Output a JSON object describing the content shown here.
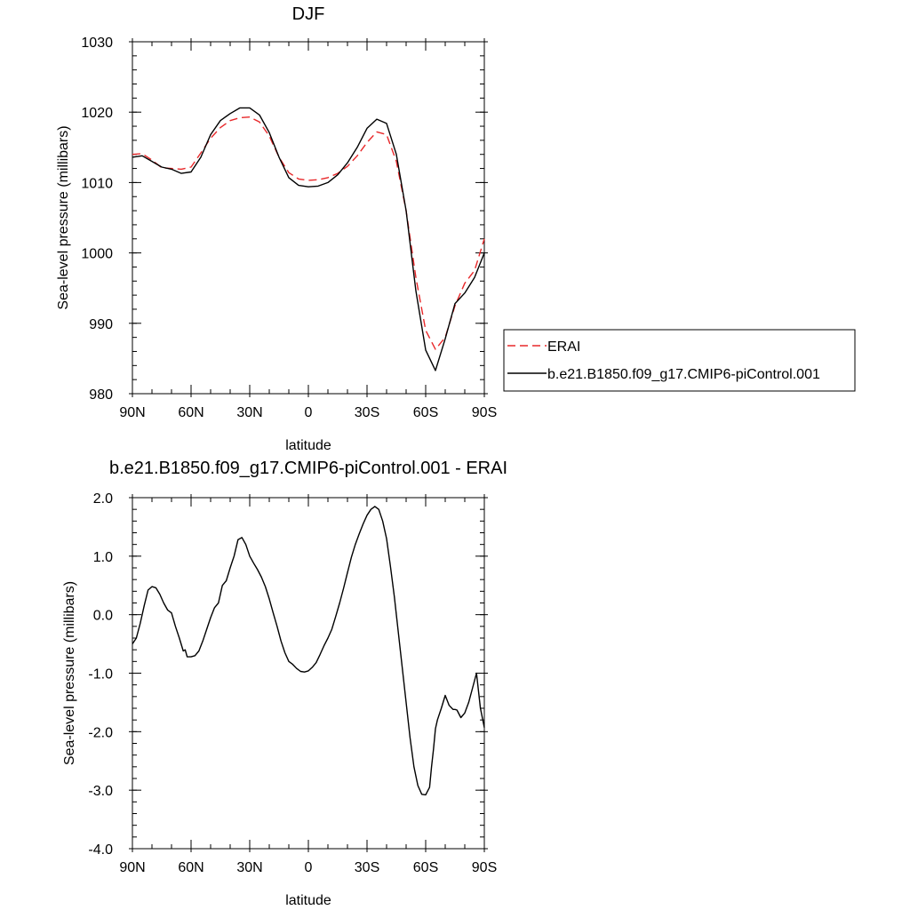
{
  "chart_data": [
    {
      "type": "line",
      "title": "DJF",
      "xlabel": "latitude",
      "ylabel": "Sea-level pressure (millibars)",
      "xlim": [
        90,
        -90
      ],
      "ylim": [
        980,
        1030
      ],
      "x_ticks": [
        {
          "value": 90,
          "label": "90N"
        },
        {
          "value": 60,
          "label": "60N"
        },
        {
          "value": 30,
          "label": "30N"
        },
        {
          "value": 0,
          "label": "0"
        },
        {
          "value": -30,
          "label": "30S"
        },
        {
          "value": -60,
          "label": "60S"
        },
        {
          "value": -90,
          "label": "90S"
        }
      ],
      "y_ticks": [
        {
          "value": 1030,
          "label": "1030"
        },
        {
          "value": 1020,
          "label": "1020"
        },
        {
          "value": 1010,
          "label": "1010"
        },
        {
          "value": 1000,
          "label": "1000"
        },
        {
          "value": 990,
          "label": "990"
        },
        {
          "value": 980,
          "label": "980"
        }
      ],
      "legend": {
        "placement": "right"
      },
      "series": [
        {
          "name": "ERAI",
          "color": "#e8282a",
          "dash": true,
          "x": [
            90,
            85,
            80,
            75,
            70,
            65,
            60,
            55,
            50,
            45,
            40,
            35,
            30,
            25,
            20,
            15,
            10,
            5,
            0,
            -5,
            -10,
            -15,
            -20,
            -25,
            -30,
            -35,
            -40,
            -45,
            -50,
            -55,
            -60,
            -65,
            -70,
            -75,
            -80,
            -85,
            -90
          ],
          "values": [
            1014.0,
            1014.1,
            1013.2,
            1012.1,
            1012.0,
            1011.9,
            1012.2,
            1014.2,
            1016.3,
            1017.8,
            1018.8,
            1019.2,
            1019.3,
            1018.6,
            1016.6,
            1013.6,
            1011.4,
            1010.5,
            1010.3,
            1010.4,
            1010.7,
            1011.3,
            1012.3,
            1013.8,
            1015.7,
            1017.2,
            1016.8,
            1013.0,
            1006.0,
            996.5,
            989.0,
            986.3,
            988.0,
            992.5,
            995.7,
            997.5,
            1002.0
          ]
        },
        {
          "name": "b.e21.B1850.f09_g17.CMIP6-piControl.001",
          "color": "#000000",
          "dash": false,
          "x": [
            90,
            85,
            80,
            75,
            70,
            65,
            60,
            55,
            50,
            45,
            40,
            35,
            30,
            25,
            20,
            15,
            10,
            5,
            0,
            -5,
            -10,
            -15,
            -20,
            -25,
            -30,
            -35,
            -40,
            -45,
            -50,
            -55,
            -60,
            -65,
            -70,
            -75,
            -80,
            -85,
            -90
          ],
          "values": [
            1013.6,
            1013.8,
            1013.0,
            1012.2,
            1011.9,
            1011.3,
            1011.5,
            1013.6,
            1016.8,
            1018.8,
            1019.8,
            1020.6,
            1020.6,
            1019.6,
            1017.1,
            1013.6,
            1010.7,
            1009.6,
            1009.4,
            1009.5,
            1010.0,
            1011.1,
            1012.8,
            1015.0,
            1017.7,
            1019.0,
            1018.4,
            1014.0,
            1006.0,
            994.6,
            986.2,
            983.3,
            987.8,
            992.8,
            994.3,
            996.5,
            1000.0
          ]
        }
      ]
    },
    {
      "type": "line",
      "title": "b.e21.B1850.f09_g17.CMIP6-piControl.001 - ERAI",
      "xlabel": "latitude",
      "ylabel": "Sea-level pressure (millibars)",
      "xlim": [
        90,
        -90
      ],
      "ylim": [
        -4.0,
        2.0
      ],
      "x_ticks": [
        {
          "value": 90,
          "label": "90N"
        },
        {
          "value": 60,
          "label": "60N"
        },
        {
          "value": 30,
          "label": "30N"
        },
        {
          "value": 0,
          "label": "0"
        },
        {
          "value": -30,
          "label": "30S"
        },
        {
          "value": -60,
          "label": "60S"
        },
        {
          "value": -90,
          "label": "90S"
        }
      ],
      "y_ticks": [
        {
          "value": 2.0,
          "label": "2.0"
        },
        {
          "value": 1.0,
          "label": "1.0"
        },
        {
          "value": 0.0,
          "label": "0.0"
        },
        {
          "value": -1.0,
          "label": "-1.0"
        },
        {
          "value": -2.0,
          "label": "-2.0"
        },
        {
          "value": -3.0,
          "label": "-3.0"
        },
        {
          "value": -4.0,
          "label": "-4.0"
        }
      ],
      "series": [
        {
          "color": "#000000",
          "dash": false,
          "x": [
            90,
            88,
            86,
            84,
            82,
            80,
            78,
            76,
            74,
            72,
            70,
            68,
            66,
            64,
            63,
            62,
            60,
            58,
            56,
            54,
            52,
            50,
            48,
            46,
            44,
            42,
            40,
            39,
            38,
            36,
            34,
            32,
            30,
            28,
            26,
            24,
            22,
            20,
            18,
            16,
            14,
            12,
            10,
            8,
            6,
            4,
            2,
            0,
            -2,
            -4,
            -6,
            -8,
            -10,
            -12,
            -14,
            -16,
            -18,
            -20,
            -22,
            -24,
            -26,
            -28,
            -30,
            -32,
            -34,
            -36,
            -38,
            -40,
            -42,
            -44,
            -46,
            -48,
            -50,
            -52,
            -54,
            -56,
            -58,
            -60,
            -62,
            -63,
            -64,
            -65,
            -66,
            -68,
            -70,
            -72,
            -74,
            -75,
            -76,
            -78,
            -80,
            -82,
            -84,
            -86,
            -88,
            -90
          ],
          "values": [
            -0.5,
            -0.4,
            -0.15,
            0.15,
            0.42,
            0.48,
            0.46,
            0.35,
            0.2,
            0.08,
            0.03,
            -0.2,
            -0.4,
            -0.62,
            -0.6,
            -0.72,
            -0.72,
            -0.7,
            -0.62,
            -0.45,
            -0.25,
            -0.05,
            0.12,
            0.2,
            0.5,
            0.58,
            0.8,
            0.9,
            1.0,
            1.28,
            1.32,
            1.2,
            1.0,
            0.88,
            0.77,
            0.64,
            0.48,
            0.27,
            0.03,
            -0.2,
            -0.45,
            -0.65,
            -0.8,
            -0.85,
            -0.92,
            -0.97,
            -0.98,
            -0.96,
            -0.9,
            -0.82,
            -0.68,
            -0.53,
            -0.4,
            -0.25,
            -0.03,
            0.2,
            0.45,
            0.72,
            0.98,
            1.2,
            1.38,
            1.55,
            1.7,
            1.8,
            1.85,
            1.8,
            1.6,
            1.3,
            0.82,
            0.3,
            -0.3,
            -0.9,
            -1.5,
            -2.1,
            -2.6,
            -2.92,
            -3.07,
            -3.08,
            -2.95,
            -2.6,
            -2.3,
            -1.95,
            -1.8,
            -1.6,
            -1.38,
            -1.55,
            -1.62,
            -1.62,
            -1.63,
            -1.76,
            -1.68,
            -1.5,
            -1.25,
            -1.0,
            -1.6,
            -1.93
          ]
        }
      ]
    }
  ]
}
